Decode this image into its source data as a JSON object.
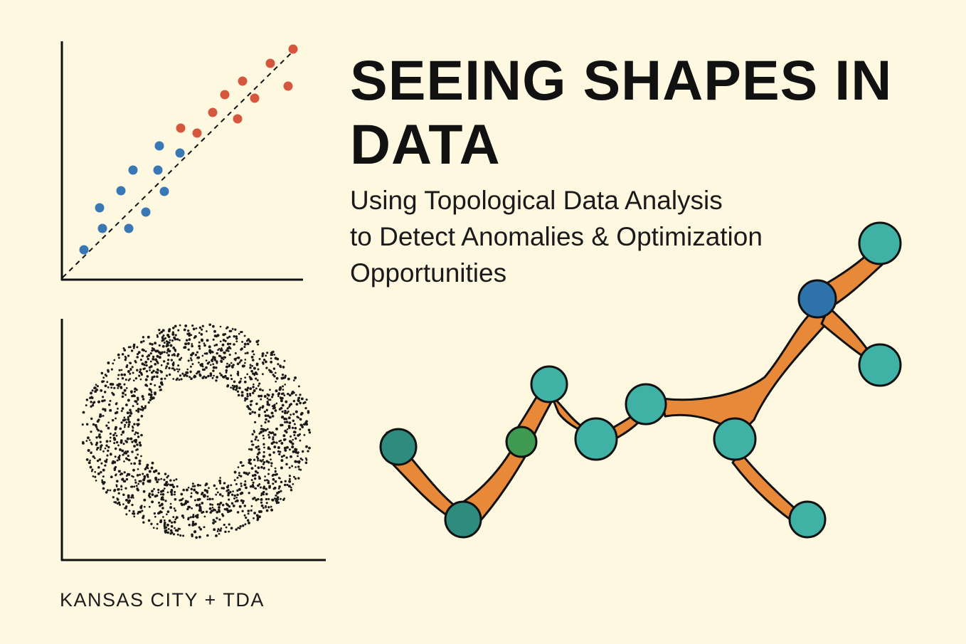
{
  "title": "SEEING SHAPES IN DATA",
  "subtitle": {
    "line1": "Using Topological Data Analysis",
    "line2": "to Detect Anomalies & Optimization",
    "line3": "Opportunities"
  },
  "footer": "KANSAS CITY + TDA",
  "colors": {
    "background": "#fdf8df",
    "axis": "#111111",
    "normal_point": "#3a78b5",
    "anomaly_point": "#d4573e",
    "ring_point": "#1a1a1a",
    "edge": "#e8893a",
    "node_teal": "#3fb1a5",
    "node_dark_teal": "#2e8c7f",
    "node_green": "#3f9a52",
    "node_blue": "#2f73ad"
  },
  "icons": {
    "scatter": "scatter-plot-icon",
    "ring": "ring-point-cloud-icon",
    "graph": "mapper-graph-icon"
  }
}
